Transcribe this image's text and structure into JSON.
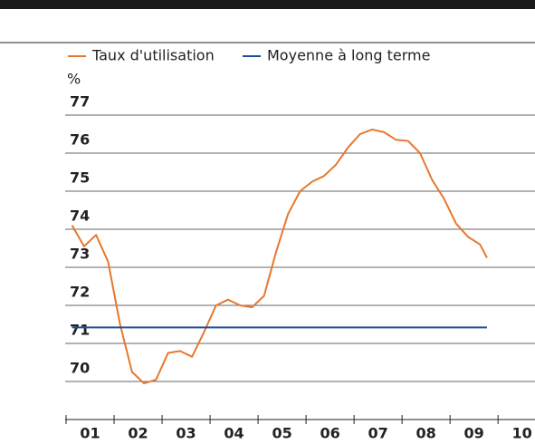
{
  "chart_data": {
    "type": "line",
    "y_label": "%",
    "categories": [
      "01",
      "02",
      "03",
      "04",
      "05",
      "06",
      "07",
      "08",
      "09",
      "10"
    ],
    "xlim": [
      1,
      10.77
    ],
    "xticks": [
      1,
      2,
      3,
      4,
      5,
      6,
      7,
      8,
      9,
      10
    ],
    "ylim": [
      69,
      77.8
    ],
    "yticks": [
      70,
      71,
      72,
      73,
      74,
      75,
      76,
      77
    ],
    "grid": true,
    "series": [
      {
        "name": "Taux d'utilisation",
        "color": "#e8772e",
        "x": [
          1.125,
          1.375,
          1.625,
          1.875,
          2.125,
          2.375,
          2.625,
          2.875,
          3.125,
          3.375,
          3.625,
          3.875,
          4.125,
          4.375,
          4.625,
          4.875,
          5.125,
          5.375,
          5.625,
          5.875,
          6.125,
          6.375,
          6.625,
          6.875,
          7.125,
          7.375,
          7.625,
          7.875,
          8.125,
          8.375,
          8.625,
          8.875,
          9.125,
          9.375,
          9.625,
          9.77
        ],
        "values": [
          74.1,
          73.55,
          73.85,
          73.15,
          71.5,
          70.25,
          69.95,
          70.05,
          70.75,
          70.8,
          70.65,
          71.3,
          72.0,
          72.15,
          72.0,
          71.95,
          72.25,
          73.4,
          74.4,
          75.0,
          75.25,
          75.4,
          75.7,
          76.15,
          76.5,
          76.62,
          76.55,
          76.35,
          76.32,
          76.0,
          75.3,
          74.8,
          74.15,
          73.8,
          73.6,
          73.25
        ]
      },
      {
        "name": "Moyenne à long terme",
        "color": "#1f4e96",
        "x": [
          1.125,
          9.77
        ],
        "values": [
          71.42,
          71.42
        ]
      }
    ]
  }
}
